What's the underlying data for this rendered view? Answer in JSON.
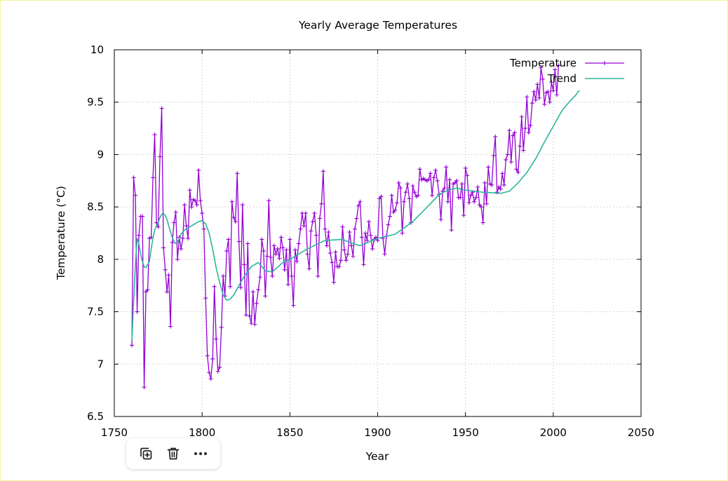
{
  "toolbar": {
    "buttons": [
      {
        "icon": "copy-add-icon",
        "label": "Duplicate"
      },
      {
        "icon": "trash-icon",
        "label": "Delete"
      },
      {
        "icon": "more-icon",
        "label": "More"
      }
    ]
  },
  "colors": {
    "temperature": "#9400d3",
    "trend": "#2bb59b",
    "grid": "#c8c8c8",
    "axis": "#000000"
  },
  "chart_data": {
    "type": "line",
    "title": "Yearly Average Temperatures",
    "xlabel": "Year",
    "ylabel": "Temperature (°C)",
    "xlim": [
      1750,
      2050
    ],
    "ylim": [
      6.5,
      10
    ],
    "xticks": [
      1750,
      1800,
      1850,
      1900,
      1950,
      2000,
      2050
    ],
    "yticks": [
      6.5,
      7,
      7.5,
      8,
      8.5,
      9,
      9.5,
      10
    ],
    "xtick_labels": [
      "1750",
      "1800",
      "1850",
      "1900",
      "1950",
      "2000",
      "2050"
    ],
    "ytick_labels": [
      "6.5",
      "7",
      "7.5",
      "8",
      "8.5",
      "9",
      "9.5",
      "10"
    ],
    "grid": true,
    "legend_position": "top-right",
    "series": [
      {
        "name": "Temperature",
        "style": "linespoints",
        "x_start": 1760,
        "values": [
          7.18,
          8.78,
          8.61,
          7.5,
          8.23,
          8.41,
          8.41,
          6.78,
          7.69,
          7.71,
          8.2,
          8.21,
          8.78,
          9.19,
          8.35,
          8.31,
          8.98,
          9.44,
          8.11,
          7.9,
          7.69,
          7.85,
          7.36,
          8.16,
          8.35,
          8.45,
          8.0,
          8.21,
          8.1,
          8.2,
          8.52,
          8.32,
          8.2,
          8.66,
          8.5,
          8.57,
          8.56,
          8.52,
          8.85,
          8.56,
          8.44,
          8.29,
          7.63,
          7.08,
          6.92,
          6.86,
          7.05,
          7.74,
          7.24,
          6.93,
          6.97,
          7.35,
          7.84,
          7.65,
          8.08,
          8.19,
          7.74,
          8.55,
          8.4,
          8.36,
          8.82,
          8.17,
          7.73,
          8.52,
          7.95,
          7.47,
          8.15,
          7.46,
          7.39,
          7.69,
          7.38,
          7.58,
          7.71,
          7.83,
          8.19,
          8.08,
          7.65,
          8.03,
          8.56,
          8.02,
          7.84,
          8.13,
          8.05,
          8.1,
          8.01,
          8.21,
          8.11,
          7.9,
          8.09,
          7.76,
          8.19,
          7.84,
          7.56,
          8.09,
          7.98,
          8.15,
          8.29,
          8.44,
          8.32,
          8.44,
          8.05,
          7.91,
          8.27,
          8.36,
          8.44,
          8.23,
          7.84,
          8.39,
          8.53,
          8.84,
          8.29,
          8.13,
          8.26,
          8.06,
          7.97,
          7.78,
          8.07,
          7.93,
          7.93,
          7.99,
          8.31,
          8.09,
          7.99,
          8.05,
          8.26,
          8.13,
          8.03,
          8.29,
          8.39,
          8.51,
          8.55,
          8.21,
          7.95,
          8.25,
          8.18,
          8.36,
          8.23,
          8.1,
          8.19,
          8.21,
          8.18,
          8.58,
          8.6,
          8.2,
          8.05,
          8.22,
          8.33,
          8.41,
          8.61,
          8.45,
          8.47,
          8.54,
          8.73,
          8.68,
          8.25,
          8.55,
          8.64,
          8.72,
          8.58,
          8.35,
          8.7,
          8.64,
          8.6,
          8.61,
          8.86,
          8.76,
          8.77,
          8.76,
          8.75,
          8.76,
          8.82,
          8.61,
          8.78,
          8.85,
          8.75,
          8.62,
          8.38,
          8.65,
          8.68,
          8.88,
          8.55,
          8.76,
          8.28,
          8.72,
          8.73,
          8.75,
          8.59,
          8.59,
          8.72,
          8.42,
          8.87,
          8.8,
          8.54,
          8.61,
          8.64,
          8.55,
          8.59,
          8.69,
          8.52,
          8.5,
          8.35,
          8.73,
          8.53,
          8.88,
          8.72,
          8.71,
          8.99,
          9.17,
          8.64,
          8.69,
          8.67,
          8.82,
          8.71,
          8.95,
          9.0,
          9.23,
          8.93,
          9.18,
          9.21,
          8.86,
          8.83,
          9.08,
          9.36,
          9.04,
          9.25,
          9.55,
          9.21,
          9.28,
          9.49,
          9.6,
          9.52,
          9.67,
          9.54,
          9.83,
          9.72,
          9.48,
          9.59,
          9.6,
          9.5,
          9.69,
          9.61,
          9.81,
          9.57,
          9.85
        ]
      },
      {
        "name": "Trend",
        "style": "smooth",
        "x": [
          1760,
          1761,
          1762,
          1763,
          1764,
          1765,
          1766,
          1767,
          1768,
          1769,
          1770,
          1771,
          1772,
          1773,
          1774,
          1775,
          1776,
          1777,
          1778,
          1779,
          1780,
          1781,
          1782,
          1783,
          1784,
          1785,
          1786,
          1787,
          1788,
          1790,
          1792,
          1794,
          1796,
          1798,
          1800,
          1802,
          1804,
          1806,
          1808,
          1810,
          1812,
          1814,
          1816,
          1818,
          1820,
          1824,
          1828,
          1832,
          1836,
          1840,
          1846,
          1850,
          1860,
          1870,
          1880,
          1886,
          1890,
          1900,
          1910,
          1920,
          1930,
          1935,
          1940,
          1945,
          1950,
          1960,
          1970,
          1975,
          1980,
          1985,
          1990,
          1995,
          2000,
          2005,
          2010,
          2013,
          2014,
          2015
        ],
        "values": [
          7.22,
          7.6,
          7.95,
          8.2,
          8.15,
          8.05,
          7.98,
          7.93,
          7.92,
          7.95,
          7.98,
          8.1,
          8.2,
          8.28,
          8.32,
          8.35,
          8.4,
          8.43,
          8.44,
          8.42,
          8.38,
          8.32,
          8.26,
          8.21,
          8.17,
          8.15,
          8.16,
          8.2,
          8.24,
          8.28,
          8.3,
          8.32,
          8.34,
          8.36,
          8.37,
          8.34,
          8.25,
          8.1,
          7.92,
          7.78,
          7.66,
          7.61,
          7.62,
          7.66,
          7.72,
          7.84,
          7.93,
          7.97,
          7.89,
          7.88,
          7.97,
          8.0,
          8.1,
          8.18,
          8.19,
          8.15,
          8.13,
          8.2,
          8.24,
          8.36,
          8.53,
          8.62,
          8.66,
          8.68,
          8.66,
          8.64,
          8.63,
          8.65,
          8.73,
          8.83,
          8.96,
          9.12,
          9.27,
          9.42,
          9.52,
          9.57,
          9.6,
          9.61
        ]
      }
    ]
  }
}
